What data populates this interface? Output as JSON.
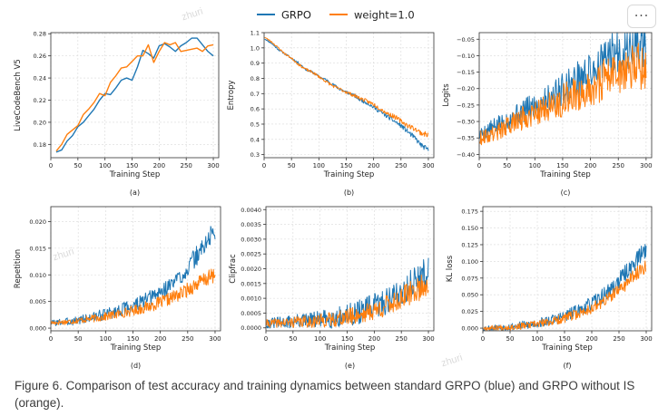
{
  "legend": {
    "series": [
      {
        "name": "GRPO",
        "color": "#1f77b4"
      },
      {
        "name": "weight=1.0",
        "color": "#ff7f0e"
      }
    ]
  },
  "more_button_label": "···",
  "watermark": "zhuri",
  "caption": "Figure 6. Comparison of test accuracy and training dynamics between standard GRPO (blue) and GRPO without IS (orange).",
  "chart_data": [
    {
      "type": "line",
      "panel_label": "(a)",
      "xlabel": "Training Step",
      "ylabel": "LiveCodeBench V5",
      "xlim": [
        0,
        310
      ],
      "ylim": [
        0.168,
        0.281
      ],
      "xticks": [
        0,
        50,
        100,
        150,
        200,
        250,
        300
      ],
      "yticks": [
        0.18,
        0.2,
        0.22,
        0.24,
        0.26,
        0.28
      ],
      "ytick_labels": [
        "0.18",
        "0.20",
        "0.22",
        "0.24",
        "0.26",
        "0.28"
      ],
      "x": [
        10,
        20,
        30,
        40,
        50,
        60,
        70,
        80,
        90,
        100,
        110,
        120,
        130,
        140,
        150,
        160,
        170,
        180,
        190,
        200,
        210,
        220,
        230,
        240,
        250,
        260,
        270,
        280,
        290,
        300,
        310
      ],
      "series": [
        {
          "name": "GRPO",
          "values": [
            0.173,
            0.175,
            0.183,
            0.188,
            0.196,
            0.2,
            0.206,
            0.212,
            0.22,
            0.226,
            0.225,
            0.231,
            0.238,
            0.24,
            0.238,
            0.25,
            0.265,
            0.262,
            0.258,
            0.269,
            0.271,
            0.268,
            0.264,
            0.269,
            0.272,
            0.276,
            0.276,
            0.27,
            0.264,
            0.26,
            null
          ]
        },
        {
          "name": "weight=1.0",
          "values": [
            0.174,
            0.18,
            0.189,
            0.193,
            0.197,
            0.207,
            0.212,
            0.218,
            0.226,
            0.224,
            0.236,
            0.242,
            0.249,
            0.25,
            0.255,
            0.26,
            0.26,
            0.27,
            0.254,
            0.264,
            0.272,
            0.27,
            0.272,
            0.264,
            0.265,
            0.266,
            0.267,
            0.264,
            0.269,
            0.27,
            null
          ]
        }
      ]
    },
    {
      "type": "line",
      "panel_label": "(b)",
      "xlabel": "Training Step",
      "ylabel": "Entropy",
      "xlim": [
        0,
        310
      ],
      "ylim": [
        0.28,
        1.1
      ],
      "xticks": [
        0,
        50,
        100,
        150,
        200,
        250,
        300
      ],
      "yticks": [
        0.3,
        0.4,
        0.5,
        0.6,
        0.7,
        0.8,
        0.9,
        1.0,
        1.1
      ],
      "ytick_labels": [
        "0.3",
        "0.4",
        "0.5",
        "0.6",
        "0.7",
        "0.8",
        "0.9",
        "1.0",
        "1.1"
      ],
      "x_range": [
        1,
        300
      ],
      "series": [
        {
          "name": "GRPO",
          "values": [
            1.06,
            1.03,
            0.99,
            0.96,
            0.93,
            0.9,
            0.86,
            0.84,
            0.81,
            0.79,
            0.76,
            0.73,
            0.71,
            0.69,
            0.66,
            0.64,
            0.61,
            0.58,
            0.55,
            0.52,
            0.49,
            0.45,
            0.41,
            0.36,
            0.33
          ],
          "noise": 0.012,
          "seed": 11
        },
        {
          "name": "weight=1.0",
          "values": [
            1.07,
            1.04,
            1.0,
            0.96,
            0.93,
            0.89,
            0.86,
            0.84,
            0.81,
            0.78,
            0.75,
            0.73,
            0.71,
            0.69,
            0.67,
            0.65,
            0.63,
            0.6,
            0.57,
            0.55,
            0.52,
            0.49,
            0.47,
            0.44,
            0.43
          ],
          "noise": 0.012,
          "seed": 23
        }
      ]
    },
    {
      "type": "line",
      "panel_label": "(c)",
      "xlabel": "Training Step",
      "ylabel": "Logits",
      "xlim": [
        0,
        310
      ],
      "ylim": [
        -0.41,
        -0.03
      ],
      "xticks": [
        0,
        50,
        100,
        150,
        200,
        250,
        300
      ],
      "yticks": [
        -0.4,
        -0.35,
        -0.3,
        -0.25,
        -0.2,
        -0.15,
        -0.1,
        -0.05
      ],
      "ytick_labels": [
        "−0.40",
        "−0.35",
        "−0.30",
        "−0.25",
        "−0.20",
        "−0.15",
        "−0.10",
        "−0.05"
      ],
      "x_range": [
        1,
        300
      ],
      "series": [
        {
          "name": "GRPO",
          "values": [
            -0.34,
            -0.31,
            -0.28,
            -0.25,
            -0.22,
            -0.18,
            -0.15,
            -0.1,
            -0.08,
            -0.07
          ],
          "noise": 0.055,
          "seed": 5
        },
        {
          "name": "weight=1.0",
          "values": [
            -0.35,
            -0.33,
            -0.3,
            -0.27,
            -0.25,
            -0.22,
            -0.2,
            -0.16,
            -0.14,
            -0.13
          ],
          "noise": 0.055,
          "seed": 9
        }
      ]
    },
    {
      "type": "line",
      "panel_label": "(d)",
      "xlabel": "Training Step",
      "ylabel": "Repetition",
      "xlim": [
        0,
        310
      ],
      "ylim": [
        -0.0005,
        0.0228
      ],
      "xticks": [
        0,
        50,
        100,
        150,
        200,
        250,
        300
      ],
      "yticks": [
        0.0,
        0.005,
        0.01,
        0.015,
        0.02
      ],
      "ytick_labels": [
        "0.000",
        "0.005",
        "0.010",
        "0.015",
        "0.020"
      ],
      "x_range": [
        1,
        300
      ],
      "series": [
        {
          "name": "GRPO",
          "values": [
            0.001,
            0.0012,
            0.0017,
            0.0024,
            0.0032,
            0.0042,
            0.0055,
            0.0074,
            0.01,
            0.014,
            0.0185
          ],
          "noise": 0.0015,
          "seed": 3
        },
        {
          "name": "weight=1.0",
          "values": [
            0.001,
            0.0012,
            0.0016,
            0.002,
            0.0026,
            0.0033,
            0.0041,
            0.0052,
            0.0066,
            0.0085,
            0.01
          ],
          "noise": 0.0011,
          "seed": 17
        }
      ]
    },
    {
      "type": "line",
      "panel_label": "(e)",
      "xlabel": "Training Step",
      "ylabel": "Clipfrac",
      "xlim": [
        0,
        310
      ],
      "ylim": [
        -0.0001,
        0.0041
      ],
      "xticks": [
        0,
        50,
        100,
        150,
        200,
        250,
        300
      ],
      "yticks": [
        0.0,
        0.0005,
        0.001,
        0.0015,
        0.002,
        0.0025,
        0.003,
        0.0035,
        0.004
      ],
      "ytick_labels": [
        "0.0000",
        "0.0005",
        "0.0010",
        "0.0015",
        "0.0020",
        "0.0025",
        "0.0030",
        "0.0035",
        "0.0040"
      ],
      "x_range": [
        1,
        300
      ],
      "series": [
        {
          "name": "GRPO",
          "values": [
            0.00015,
            0.00018,
            0.00022,
            0.00026,
            0.00032,
            0.00042,
            0.00058,
            0.0008,
            0.0011,
            0.0015,
            0.00185
          ],
          "noise": 0.00042,
          "seed": 31
        },
        {
          "name": "weight=1.0",
          "values": [
            0.00015,
            0.00017,
            0.0002,
            0.00023,
            0.00028,
            0.00036,
            0.00048,
            0.00065,
            0.0009,
            0.0012,
            0.0015
          ],
          "noise": 0.00032,
          "seed": 41
        }
      ]
    },
    {
      "type": "line",
      "panel_label": "(f)",
      "xlabel": "Training Step",
      "ylabel": "KL loss",
      "xlim": [
        0,
        310
      ],
      "ylim": [
        -0.004,
        0.182
      ],
      "xticks": [
        0,
        50,
        100,
        150,
        200,
        250,
        300
      ],
      "yticks": [
        0.0,
        0.025,
        0.05,
        0.075,
        0.1,
        0.125,
        0.15,
        0.175
      ],
      "ytick_labels": [
        "0.000",
        "0.025",
        "0.050",
        "0.075",
        "0.100",
        "0.125",
        "0.150",
        "0.175"
      ],
      "x_range": [
        1,
        300
      ],
      "series": [
        {
          "name": "GRPO",
          "values": [
            0.0,
            0.001,
            0.003,
            0.006,
            0.011,
            0.018,
            0.028,
            0.042,
            0.062,
            0.09,
            0.12
          ],
          "noise": 0.01,
          "seed": 53
        },
        {
          "name": "weight=1.0",
          "values": [
            0.0,
            0.001,
            0.002,
            0.005,
            0.009,
            0.015,
            0.023,
            0.034,
            0.05,
            0.072,
            0.095
          ],
          "noise": 0.008,
          "seed": 67
        }
      ]
    }
  ]
}
